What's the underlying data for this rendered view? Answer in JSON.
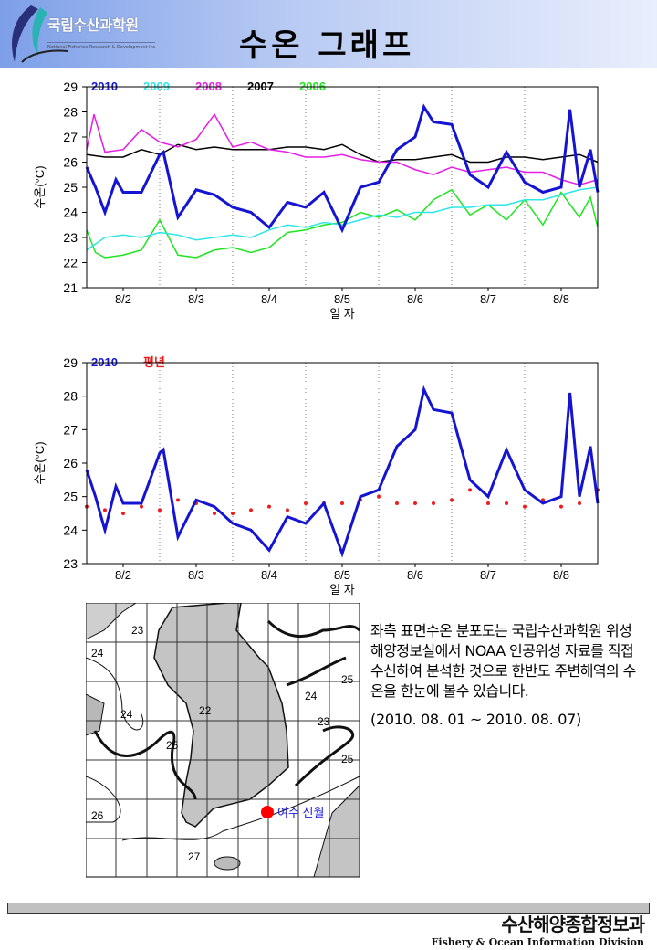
{
  "header": {
    "logo_text": "국립수산과학원",
    "logo_sub": "National Fisheries Research & Development Institute",
    "title": "수온 그래프"
  },
  "colors": {
    "2010": "#1414d2",
    "2009": "#2ee6e6",
    "2008": "#e61ee6",
    "2007": "#000000",
    "2006": "#1ee61e",
    "normal": "#ee1c1c"
  },
  "chart_data": [
    {
      "type": "line",
      "xlabel": "일 자",
      "ylabel": "수온(°C)",
      "ylim": [
        21,
        29
      ],
      "xlim": [
        1,
        8
      ],
      "yticks": [
        21,
        22,
        23,
        24,
        25,
        26,
        27,
        28,
        29
      ],
      "xticks": [
        {
          "x": 1.5,
          "label": "8/2"
        },
        {
          "x": 2.5,
          "label": "8/3"
        },
        {
          "x": 3.5,
          "label": "8/4"
        },
        {
          "x": 4.5,
          "label": "8/5"
        },
        {
          "x": 5.5,
          "label": "8/6"
        },
        {
          "x": 6.5,
          "label": "8/7"
        },
        {
          "x": 7.5,
          "label": "8/8"
        }
      ],
      "legend": "top-left",
      "series": [
        {
          "name": "2010",
          "x": [
            1,
            1.12,
            1.25,
            1.4,
            1.5,
            1.75,
            2.0,
            2.05,
            2.25,
            2.5,
            2.75,
            3.0,
            3.25,
            3.5,
            3.75,
            4.0,
            4.25,
            4.5,
            4.75,
            5.0,
            5.25,
            5.5,
            5.62,
            5.75,
            6.0,
            6.25,
            6.5,
            6.75,
            7.0,
            7.25,
            7.5,
            7.62,
            7.75,
            7.9,
            8.0
          ],
          "y": [
            25.8,
            25.0,
            24.0,
            25.3,
            24.8,
            24.8,
            26.3,
            26.4,
            23.8,
            24.9,
            24.7,
            24.2,
            24.0,
            23.4,
            24.4,
            24.2,
            24.8,
            23.3,
            25.0,
            25.2,
            26.5,
            27.0,
            28.2,
            27.6,
            27.5,
            25.5,
            25.0,
            26.4,
            25.2,
            24.8,
            25.0,
            28.1,
            25.0,
            26.5,
            24.8
          ]
        },
        {
          "name": "2009",
          "x": [
            1,
            1.25,
            1.5,
            1.75,
            2,
            2.25,
            2.5,
            2.75,
            3,
            3.25,
            3.5,
            3.75,
            4,
            4.25,
            4.5,
            4.75,
            5,
            5.25,
            5.5,
            5.75,
            6,
            6.25,
            6.5,
            6.75,
            7,
            7.25,
            7.5,
            7.75,
            8
          ],
          "y": [
            22.5,
            23.0,
            23.1,
            23.0,
            23.2,
            23.1,
            22.9,
            23.0,
            23.1,
            23.0,
            23.3,
            23.5,
            23.4,
            23.6,
            23.5,
            23.7,
            23.9,
            23.8,
            24.0,
            24.0,
            24.2,
            24.2,
            24.3,
            24.3,
            24.5,
            24.5,
            24.7,
            24.9,
            25.0
          ]
        },
        {
          "name": "2008",
          "x": [
            1,
            1.1,
            1.25,
            1.5,
            1.75,
            2,
            2.25,
            2.5,
            2.75,
            3,
            3.25,
            3.5,
            3.75,
            4,
            4.25,
            4.5,
            4.75,
            5,
            5.25,
            5.5,
            5.75,
            6,
            6.25,
            6.5,
            6.75,
            7,
            7.25,
            7.5,
            7.75,
            8
          ],
          "y": [
            26.5,
            27.9,
            26.4,
            26.5,
            27.3,
            26.8,
            26.6,
            26.9,
            27.9,
            26.6,
            26.8,
            26.5,
            26.4,
            26.2,
            26.2,
            26.3,
            26.1,
            26.0,
            26.0,
            25.7,
            25.5,
            25.8,
            25.6,
            25.7,
            25.8,
            25.6,
            25.6,
            25.3,
            25.1,
            25.3
          ]
        },
        {
          "name": "2007",
          "x": [
            1,
            1.25,
            1.5,
            1.75,
            2,
            2.25,
            2.5,
            2.75,
            3,
            3.25,
            3.5,
            3.75,
            4,
            4.25,
            4.5,
            4.75,
            5,
            5.25,
            5.5,
            5.75,
            6,
            6.25,
            6.5,
            6.75,
            7,
            7.25,
            7.5,
            7.75,
            8
          ],
          "y": [
            26.3,
            26.2,
            26.2,
            26.5,
            26.3,
            26.7,
            26.5,
            26.6,
            26.5,
            26.5,
            26.5,
            26.6,
            26.6,
            26.5,
            26.7,
            26.3,
            26.0,
            26.1,
            26.1,
            26.2,
            26.3,
            26.0,
            26.0,
            26.2,
            26.2,
            26.1,
            26.2,
            26.3,
            26.0
          ]
        },
        {
          "name": "2006",
          "x": [
            1,
            1.12,
            1.25,
            1.5,
            1.75,
            2,
            2.25,
            2.5,
            2.75,
            3,
            3.25,
            3.5,
            3.75,
            4,
            4.25,
            4.5,
            4.75,
            5,
            5.25,
            5.5,
            5.75,
            6,
            6.25,
            6.5,
            6.75,
            7,
            7.25,
            7.5,
            7.75,
            7.9,
            8
          ],
          "y": [
            23.3,
            22.4,
            22.2,
            22.3,
            22.5,
            23.7,
            22.3,
            22.2,
            22.5,
            22.6,
            22.4,
            22.6,
            23.2,
            23.3,
            23.5,
            23.6,
            24.0,
            23.8,
            24.1,
            23.7,
            24.5,
            24.9,
            23.9,
            24.3,
            23.7,
            24.5,
            23.5,
            24.8,
            23.8,
            24.6,
            23.4
          ]
        }
      ]
    },
    {
      "type": "line",
      "xlabel": "일 자",
      "ylabel": "수온(°C)",
      "ylim": [
        23,
        29
      ],
      "xlim": [
        1,
        8
      ],
      "yticks": [
        23,
        24,
        25,
        26,
        27,
        28,
        29
      ],
      "xticks": [
        {
          "x": 1.5,
          "label": "8/2"
        },
        {
          "x": 2.5,
          "label": "8/3"
        },
        {
          "x": 3.5,
          "label": "8/4"
        },
        {
          "x": 4.5,
          "label": "8/5"
        },
        {
          "x": 5.5,
          "label": "8/6"
        },
        {
          "x": 6.5,
          "label": "8/7"
        },
        {
          "x": 7.5,
          "label": "8/8"
        }
      ],
      "legend": "top-left",
      "series": [
        {
          "name": "2010",
          "x": [
            1,
            1.12,
            1.25,
            1.4,
            1.5,
            1.75,
            2.0,
            2.05,
            2.25,
            2.5,
            2.75,
            3.0,
            3.25,
            3.5,
            3.75,
            4.0,
            4.25,
            4.5,
            4.75,
            5.0,
            5.25,
            5.5,
            5.62,
            5.75,
            6.0,
            6.25,
            6.5,
            6.75,
            7.0,
            7.25,
            7.5,
            7.62,
            7.75,
            7.9,
            8.0
          ],
          "y": [
            25.8,
            25.0,
            24.0,
            25.3,
            24.8,
            24.8,
            26.3,
            26.4,
            23.8,
            24.9,
            24.7,
            24.2,
            24.0,
            23.4,
            24.4,
            24.2,
            24.8,
            23.3,
            25.0,
            25.2,
            26.5,
            27.0,
            28.2,
            27.6,
            27.5,
            25.5,
            25.0,
            26.4,
            25.2,
            24.8,
            25.0,
            28.1,
            25.0,
            26.5,
            24.8
          ]
        },
        {
          "name": "평년",
          "x": [
            1,
            1.25,
            1.5,
            1.75,
            2,
            2.25,
            2.5,
            2.75,
            3,
            3.25,
            3.5,
            3.75,
            4,
            4.25,
            4.5,
            4.75,
            5,
            5.25,
            5.5,
            5.75,
            6,
            6.25,
            6.5,
            6.75,
            7,
            7.25,
            7.5,
            7.75,
            8
          ],
          "y": [
            24.7,
            24.6,
            24.5,
            24.7,
            24.6,
            24.9,
            24.8,
            24.5,
            24.5,
            24.6,
            24.7,
            24.6,
            24.8,
            24.8,
            24.8,
            24.9,
            25.0,
            24.8,
            24.8,
            24.8,
            24.9,
            25.2,
            24.8,
            24.8,
            24.7,
            24.9,
            24.7,
            24.8,
            25.2
          ]
        }
      ]
    }
  ],
  "map": {
    "labels": [
      "23",
      "24",
      "24",
      "22",
      "25",
      "26",
      "27",
      "25",
      "25",
      "24",
      "23"
    ],
    "station": "여수 신월"
  },
  "description": "좌측 표면수온 분포도는 국립수산과학원 위성해양정보실에서 NOAA 인공위성 자료를 직접 수신하여 분석한 것으로  한반도 주변해역의 수온을 한눈에 볼수 있습니다.",
  "period": "(2010. 08. 01 ~ 2010. 08. 07)",
  "footer": {
    "org_ko": "수산해양종합정보과",
    "org_en": "Fishery & Ocean Information Division"
  }
}
